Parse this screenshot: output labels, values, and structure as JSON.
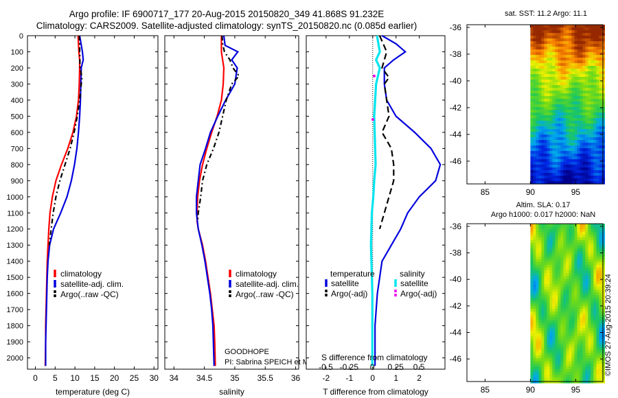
{
  "title_line1": "Argo profile: IF 6900717_177 20-Aug-2015 20150820_349 41.868S 91.232E",
  "title_line2": "Climatology: CARS2009. Satellite-adjusted climatology: synTS_20150820.nc (0.085d earlier)",
  "sat_title": "sat. SST: 11.2 Argo: 11.1",
  "alt_title_line1": "Altim. SLA: 0.17",
  "alt_title_line2": "Argo h1000: 0.017 h2000: NaN",
  "stamp": "©IMOS 27-Aug-2015 20:39:24",
  "colors": {
    "climatology": "#ff0000",
    "satellite": "#0000dd",
    "argo": "#000000",
    "sat_salinity": "#00e5ee",
    "argo_salinity": "#ee00ee"
  },
  "chart_data": [
    {
      "type": "line",
      "xlabel": "temperature (deg C)",
      "ylabel": "",
      "xlim": [
        -2,
        31
      ],
      "ylim": [
        2070,
        0
      ],
      "xticks": [
        "0",
        "5",
        "10",
        "15",
        "20",
        "25",
        "30"
      ],
      "yticks": [
        "0",
        "100",
        "200",
        "300",
        "400",
        "500",
        "600",
        "700",
        "800",
        "900",
        "1000",
        "1100",
        "1200",
        "1300",
        "1400",
        "1500",
        "1600",
        "1700",
        "1800",
        "1900",
        "2000"
      ],
      "legend": [
        "climatology",
        "satellite-adj. clim.",
        "Argo(..raw -QC)"
      ],
      "series": [
        {
          "name": "climatology",
          "x": [
            10.8,
            11.0,
            11.2,
            11.2,
            11.1,
            10.9,
            10.4,
            9.5,
            8.2,
            6.6,
            5.2,
            4.3,
            3.7,
            3.4,
            3.2,
            3.0,
            2.9,
            2.8,
            2.7,
            2.6,
            2.6,
            2.5
          ],
          "y": [
            0,
            100,
            150,
            200,
            300,
            400,
            500,
            600,
            700,
            800,
            900,
            1000,
            1100,
            1200,
            1300,
            1400,
            1500,
            1600,
            1700,
            1800,
            1900,
            2050
          ]
        },
        {
          "name": "satellite-adj. clim.",
          "x": [
            11.2,
            11.9,
            12.1,
            11.6,
            11.5,
            11.4,
            11.2,
            10.9,
            10.5,
            9.9,
            9.1,
            8.0,
            6.4,
            4.6,
            3.6,
            3.2,
            3.0,
            2.9,
            2.8,
            2.7,
            2.6,
            2.6
          ],
          "y": [
            0,
            100,
            150,
            200,
            300,
            400,
            500,
            600,
            700,
            800,
            900,
            1000,
            1100,
            1200,
            1300,
            1400,
            1500,
            1600,
            1700,
            1800,
            1900,
            2050
          ]
        },
        {
          "name": "Argo(..raw -QC)",
          "x": [
            11.1,
            11.2,
            11.2,
            11.3,
            11.8,
            11.6,
            11.2,
            10.6,
            9.8,
            8.8,
            7.5,
            6.2,
            5.2,
            4.5,
            4.0,
            3.5
          ],
          "y": [
            0,
            50,
            100,
            200,
            260,
            300,
            400,
            500,
            600,
            700,
            800,
            900,
            1000,
            1100,
            1200,
            1300
          ]
        }
      ]
    },
    {
      "type": "line",
      "xlabel": "salinity",
      "ylabel": "",
      "xlim": [
        33.85,
        36.05
      ],
      "ylim": [
        2070,
        0
      ],
      "xticks": [
        "34",
        "34.5",
        "35",
        "35.5",
        "36"
      ],
      "legend": [
        "climatology",
        "satellite-adj. clim.",
        "Argo(..raw -QC)"
      ],
      "annotation_lines": [
        "GOODHOPE",
        "PI: Sabrina SPEICH et Michel AREAN"
      ],
      "series": [
        {
          "name": "climatology",
          "x": [
            34.78,
            34.78,
            34.8,
            34.82,
            34.81,
            34.78,
            34.71,
            34.62,
            34.54,
            34.47,
            34.42,
            34.39,
            34.38,
            34.38,
            34.4,
            34.47,
            34.52,
            34.56,
            34.6,
            34.63,
            34.66,
            34.67,
            34.68
          ],
          "y": [
            0,
            100,
            150,
            200,
            300,
            400,
            500,
            600,
            700,
            800,
            900,
            1000,
            1100,
            1150,
            1200,
            1300,
            1400,
            1500,
            1600,
            1700,
            1800,
            1900,
            2050
          ]
        },
        {
          "name": "satellite-adj. clim.",
          "x": [
            34.82,
            34.84,
            35.05,
            34.95,
            35.04,
            35.0,
            34.85,
            34.72,
            34.6,
            34.52,
            34.43,
            34.4,
            34.37,
            34.37,
            34.4,
            34.46,
            34.51,
            34.55,
            34.59,
            34.62,
            34.64,
            34.66
          ],
          "y": [
            0,
            60,
            100,
            150,
            200,
            300,
            400,
            500,
            600,
            700,
            800,
            900,
            1000,
            1100,
            1200,
            1300,
            1400,
            1500,
            1600,
            1700,
            1800,
            2050
          ]
        },
        {
          "name": "Argo(..raw -QC)",
          "x": [
            34.79,
            34.8,
            34.83,
            34.92,
            34.97,
            35.07,
            34.95,
            34.86,
            34.8,
            34.74,
            34.65,
            34.54,
            34.47,
            34.44,
            34.4,
            34.39
          ],
          "y": [
            0,
            50,
            100,
            150,
            200,
            250,
            300,
            400,
            500,
            600,
            700,
            800,
            900,
            1000,
            1100,
            1150
          ]
        }
      ]
    },
    {
      "type": "line",
      "xlabel": "T difference from climatology",
      "top_axis_label": "S difference from climatology",
      "xlim": [
        -2.85,
        3.1
      ],
      "top_xlim": [
        -0.71,
        0.78
      ],
      "ylim": [
        2070,
        0
      ],
      "xticks": [
        "-2",
        "-1",
        "0",
        "1",
        "2"
      ],
      "top_xticks": [
        "-0.5",
        "-0.25",
        "0",
        "0.25",
        "0.5"
      ],
      "legend_groups": [
        "temperature",
        "salinity"
      ],
      "legend": [
        "satellite",
        "Argo(-adj)",
        "satellite",
        "Argo(-adj)"
      ],
      "series": [
        {
          "name": "satellite",
          "x": [
            0.4,
            1.0,
            1.4,
            0.9,
            0.5,
            0.5,
            0.6,
            1.0,
            1.8,
            2.5,
            2.9,
            2.7,
            2.0,
            1.5,
            1.2,
            0.8,
            0.4,
            0.3,
            0.2,
            0.15,
            0.1,
            0.1
          ],
          "y": [
            0,
            50,
            100,
            150,
            200,
            300,
            400,
            500,
            600,
            700,
            800,
            900,
            1000,
            1100,
            1200,
            1300,
            1400,
            1500,
            1600,
            1700,
            1800,
            2050
          ]
        },
        {
          "name": "Argo(-adj)",
          "x": [
            0.3,
            0.6,
            0.4,
            0.7,
            0.5,
            0.6,
            0.7,
            0.4,
            0.8,
            0.9,
            0.9,
            0.7,
            0.5,
            0.3
          ],
          "y": [
            0,
            100,
            200,
            260,
            300,
            400,
            500,
            600,
            700,
            800,
            900,
            1000,
            1100,
            1200
          ]
        },
        {
          "name": "satellite",
          "axis": "salinity",
          "x": [
            0.05,
            0.08,
            0.04,
            0.08,
            0.04,
            0.03,
            0.02,
            0.025,
            0.03,
            0.035,
            0.02,
            0.01,
            -0.005,
            -0.01,
            -0.015,
            -0.01,
            -0.005,
            0.0,
            0.0,
            0.0,
            0.0
          ],
          "y": [
            0,
            100,
            150,
            200,
            300,
            400,
            500,
            600,
            700,
            800,
            900,
            1000,
            1100,
            1200,
            1300,
            1400,
            1500,
            1600,
            1700,
            1800,
            2050
          ]
        },
        {
          "name": "Argo(-adj)",
          "axis": "salinity",
          "x": [
            0.02,
            0.005
          ],
          "y": [
            250,
            520
          ]
        }
      ]
    },
    {
      "type": "heatmap",
      "title": "sat. SST: 11.2 Argo: 11.1",
      "xlim": [
        83,
        98
      ],
      "ylim": [
        -47.7,
        -35.8
      ],
      "xticks": [
        "85",
        "90",
        "95"
      ],
      "yticks": [
        "-36",
        "-38",
        "-40",
        "-42",
        "-44",
        "-46"
      ]
    },
    {
      "type": "heatmap",
      "title": "Altim. SLA: 0.17",
      "xlim": [
        83,
        98
      ],
      "ylim": [
        -47.7,
        -35.8
      ],
      "xticks": [
        "85",
        "90",
        "95"
      ],
      "yticks": [
        "-36",
        "-38",
        "-40",
        "-42",
        "-44",
        "-46"
      ]
    }
  ]
}
